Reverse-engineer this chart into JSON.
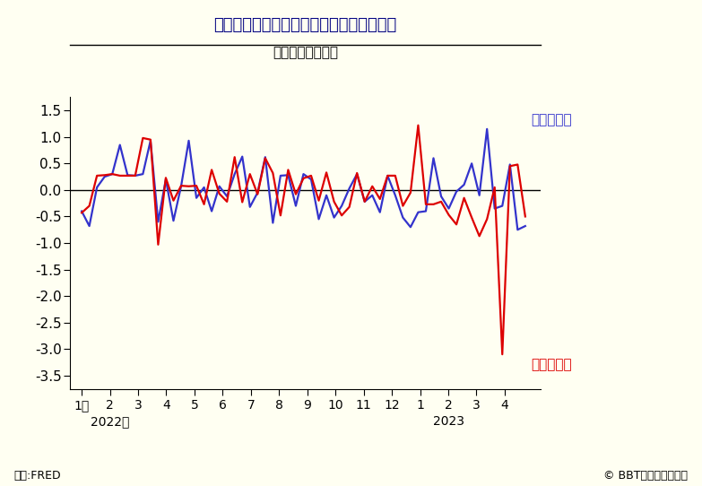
{
  "title": "米国銀行の預金残高の対前週増減比の推移",
  "subtitle": "（％、週ベース）",
  "xlabel_2022": "2022年",
  "xlabel_2023": "2023",
  "source_left": "資料:FRED",
  "source_right": "© BBT大学総合研究所",
  "label_large": "大規模銀行",
  "label_small": "小規模銀行",
  "color_large": "#3333cc",
  "color_small": "#dd0000",
  "background_color": "#fffff2",
  "ylim": [
    -3.75,
    1.75
  ],
  "yticks": [
    -3.5,
    -3.0,
    -2.5,
    -2.0,
    -1.5,
    -1.0,
    -0.5,
    0.0,
    0.5,
    1.0,
    1.5
  ],
  "month_labels": [
    "1月",
    "2",
    "3",
    "4",
    "5",
    "6",
    "7",
    "8",
    "9",
    "10",
    "11",
    "12",
    "1",
    "2",
    "3",
    "4"
  ],
  "large_bank": [
    -0.4,
    -0.68,
    0.05,
    0.25,
    0.3,
    0.85,
    0.28,
    0.27,
    0.3,
    0.93,
    -0.6,
    0.2,
    -0.58,
    0.07,
    0.93,
    -0.15,
    0.05,
    -0.4,
    0.07,
    -0.12,
    0.3,
    0.63,
    -0.32,
    -0.05,
    0.62,
    -0.62,
    0.27,
    0.28,
    -0.3,
    0.3,
    0.2,
    -0.55,
    -0.1,
    -0.52,
    -0.3,
    0.03,
    0.3,
    -0.22,
    -0.1,
    -0.42,
    0.27,
    -0.1,
    -0.52,
    -0.7,
    -0.42,
    -0.4,
    0.6,
    -0.12,
    -0.35,
    -0.03,
    0.1,
    0.5,
    -0.1,
    1.15,
    -0.35,
    -0.3,
    0.48,
    -0.75,
    -0.68
  ],
  "small_bank": [
    -0.43,
    -0.3,
    0.27,
    0.28,
    0.3,
    0.27,
    0.27,
    0.27,
    0.98,
    0.95,
    -1.03,
    0.23,
    -0.2,
    0.08,
    0.07,
    0.08,
    -0.27,
    0.38,
    -0.07,
    -0.22,
    0.62,
    -0.23,
    0.3,
    -0.08,
    0.6,
    0.32,
    -0.48,
    0.38,
    -0.08,
    0.22,
    0.27,
    -0.2,
    0.33,
    -0.22,
    -0.48,
    -0.32,
    0.32,
    -0.22,
    0.07,
    -0.17,
    0.27,
    0.27,
    -0.3,
    -0.05,
    1.22,
    -0.27,
    -0.27,
    -0.22,
    -0.47,
    -0.65,
    -0.15,
    -0.52,
    -0.87,
    -0.55,
    0.05,
    -3.1,
    0.45,
    0.48,
    -0.5
  ]
}
